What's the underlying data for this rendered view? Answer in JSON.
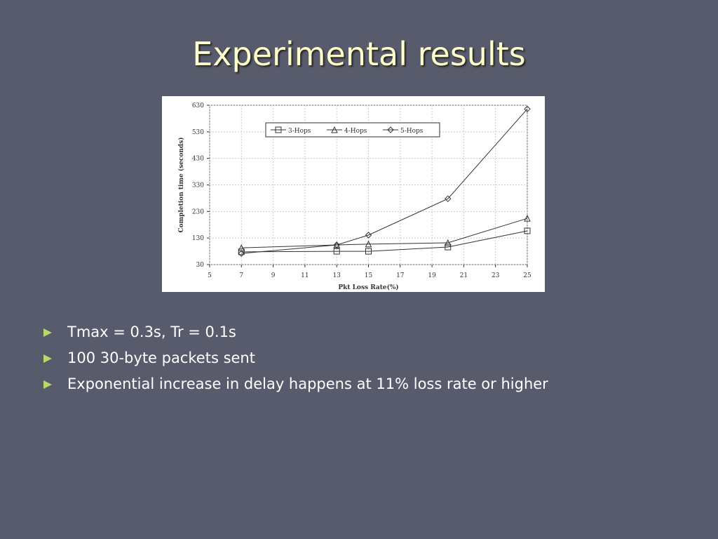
{
  "title": "Experimental results",
  "bullets": [
    "Tmax = 0.3s, Tr = 0.1s",
    "100  30-byte packets sent",
    "Exponential increase in delay happens at 11% loss rate or higher"
  ],
  "chart_data": {
    "type": "line",
    "x_label": "Pkt Loss Rate(%)",
    "y_label": "Completion time (seconds)",
    "x": [
      7,
      13,
      15,
      20,
      25
    ],
    "series": [
      {
        "name": "3-Hops",
        "color": "#333333",
        "marker": "square",
        "values": [
          78,
          80,
          80,
          96,
          157
        ]
      },
      {
        "name": "4-Hops",
        "color": "#333333",
        "marker": "triangle",
        "values": [
          93,
          104,
          107,
          112,
          204
        ]
      },
      {
        "name": "5-Hops",
        "color": "#333333",
        "marker": "diamond",
        "values": [
          72,
          104,
          141,
          278,
          616
        ]
      }
    ],
    "xlim": [
      5,
      25
    ],
    "xticks": [
      5,
      7,
      9,
      11,
      13,
      15,
      17,
      19,
      21,
      23,
      25
    ],
    "ylim": [
      30,
      630
    ],
    "yticks": [
      30,
      130,
      230,
      330,
      430,
      530,
      630
    ],
    "grid": true
  }
}
